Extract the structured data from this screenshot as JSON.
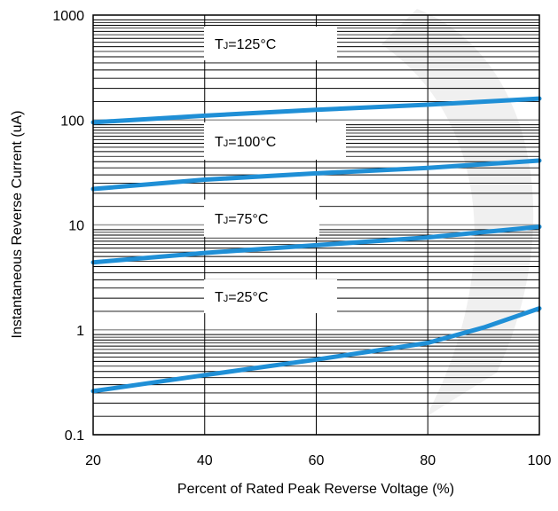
{
  "chart_data": {
    "type": "line",
    "title": "",
    "xlabel": "Percent of Rated Peak Reverse Voltage (%)",
    "ylabel": "Instantaneous Reverse Current (uA)",
    "xlim": [
      20,
      100
    ],
    "ylim": [
      0.1,
      1000
    ],
    "yscale": "log",
    "grid": true,
    "x_ticks": [
      "20",
      "40",
      "60",
      "80",
      "100"
    ],
    "y_ticks": [
      "0.1",
      "1",
      "10",
      "100",
      "1000"
    ],
    "line_color": "#1f8fd6",
    "series": [
      {
        "name": "TJ=125°C",
        "label_main": "T",
        "label_sub": "J",
        "label_rest": "=125°C",
        "x": [
          20,
          40,
          60,
          80,
          100
        ],
        "y": [
          95,
          110,
          125,
          140,
          160
        ]
      },
      {
        "name": "TJ=100°C",
        "label_main": "T",
        "label_sub": "J",
        "label_rest": "=100°C",
        "x": [
          20,
          40,
          60,
          80,
          100
        ],
        "y": [
          22,
          27,
          31,
          35,
          41
        ]
      },
      {
        "name": "TJ=75°C",
        "label_main": "T",
        "label_sub": "J",
        "label_rest": "=75°C",
        "x": [
          20,
          40,
          60,
          80,
          100
        ],
        "y": [
          4.4,
          5.4,
          6.4,
          7.6,
          9.6
        ]
      },
      {
        "name": "TJ=25°C",
        "label_main": "T",
        "label_sub": "J",
        "label_rest": "=25°C",
        "x": [
          20,
          40,
          60,
          80,
          90,
          100
        ],
        "y": [
          0.26,
          0.37,
          0.52,
          0.75,
          1.05,
          1.6
        ]
      }
    ]
  }
}
